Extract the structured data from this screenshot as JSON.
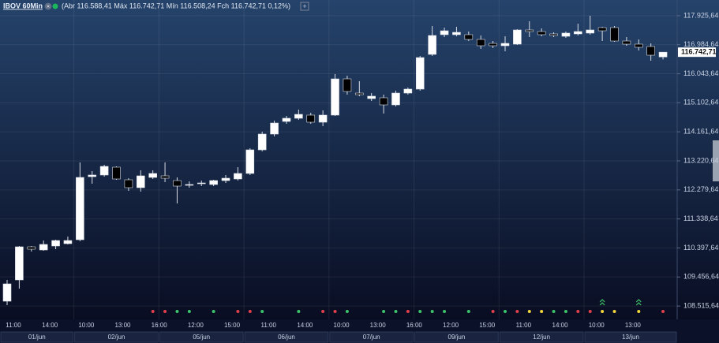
{
  "chart_data": {
    "type": "candlestick",
    "title": "IBOV 60Min",
    "subtitle": "(Abr 116.588,41 Máx 116.742,71 Mín 116.508,24 Fch 116.742,71 0,12%)",
    "categories": [
      "11:00",
      null,
      null,
      "14:00",
      null,
      null,
      "10:00",
      null,
      null,
      "13:00",
      null,
      null,
      "16:00",
      null,
      null,
      "12:00",
      null,
      null,
      "15:00",
      null,
      null,
      "11:00",
      null,
      null,
      "14:00",
      null,
      null,
      "10:00",
      null,
      null,
      "13:00",
      null,
      null,
      "16:00",
      null,
      null,
      "12:00",
      null,
      null,
      "15:00",
      null,
      null,
      "11:00",
      null,
      null,
      "14:00",
      null,
      null,
      "10:00",
      null,
      null,
      "13:00",
      null,
      null,
      null
    ],
    "dates": [
      "01/jun",
      "01/jun",
      "01/jun",
      "01/jun",
      "01/jun",
      "01/jun",
      "02/jun",
      "02/jun",
      "02/jun",
      "02/jun",
      "02/jun",
      "02/jun",
      "02/jun",
      "05/jun",
      "05/jun",
      "05/jun",
      "05/jun",
      "05/jun",
      "05/jun",
      "05/jun",
      "06/jun",
      "06/jun",
      "06/jun",
      "06/jun",
      "06/jun",
      "06/jun",
      "06/jun",
      "07/jun",
      "07/jun",
      "07/jun",
      "07/jun",
      "07/jun",
      "07/jun",
      "07/jun",
      "09/jun",
      "09/jun",
      "09/jun",
      "09/jun",
      "09/jun",
      "09/jun",
      "09/jun",
      "12/jun",
      "12/jun",
      "12/jun",
      "12/jun",
      "12/jun",
      "12/jun",
      "12/jun",
      "13/jun",
      "13/jun",
      "13/jun",
      "13/jun",
      "13/jun",
      "13/jun",
      "13/jun"
    ],
    "open": [
      108672,
      109362,
      110435,
      110333,
      110461,
      110537,
      110665,
      112709,
      112761,
      113016,
      112607,
      112352,
      112684,
      112735,
      112582,
      112428,
      112479,
      112454,
      112582,
      112633,
      112812,
      113578,
      114089,
      114498,
      114601,
      114703,
      114473,
      114703,
      115878,
      115418,
      115239,
      115265,
      115035,
      115418,
      115546,
      116671,
      117310,
      117310,
      117310,
      117156,
      117028,
      116952,
      117003,
      117463,
      117412,
      117335,
      117258,
      117335,
      117361,
      117540,
      117540,
      117105,
      117003,
      116926,
      116588.41
    ],
    "high": [
      109362,
      110461,
      110461,
      110639,
      110665,
      110767,
      113169,
      112888,
      113093,
      113042,
      112658,
      112914,
      112914,
      113169,
      112684,
      112556,
      112582,
      112607,
      112761,
      113016,
      113629,
      114166,
      114524,
      114677,
      114882,
      114779,
      114856,
      116032,
      115981,
      115802,
      115418,
      115367,
      115495,
      115597,
      116620,
      117591,
      117540,
      117565,
      117412,
      117284,
      117105,
      117258,
      117488,
      117744,
      117514,
      117386,
      117412,
      117667,
      117923,
      117565,
      117591,
      117233,
      117156,
      117028,
      116742.71
    ],
    "low": [
      108544,
      109081,
      110282,
      110307,
      110358,
      110512,
      110614,
      112479,
      112709,
      112607,
      112249,
      112224,
      112633,
      112531,
      111841,
      112352,
      112403,
      112403,
      112505,
      112582,
      112761,
      113527,
      114013,
      114422,
      114549,
      114422,
      114345,
      114677,
      115367,
      115316,
      115163,
      114754,
      114984,
      115367,
      115495,
      116620,
      117233,
      117258,
      117105,
      116850,
      116875,
      116773,
      116977,
      117233,
      117258,
      117233,
      117207,
      117284,
      117310,
      117105,
      117080,
      116952,
      116798,
      116466,
      116508.24
    ],
    "close": [
      109234,
      110435,
      110358,
      110512,
      110639,
      110639,
      112684,
      112761,
      113042,
      112633,
      112352,
      112735,
      112812,
      112658,
      112403,
      112454,
      112505,
      112582,
      112658,
      112812,
      113578,
      114089,
      114447,
      114601,
      114728,
      114473,
      114703,
      115878,
      115470,
      115367,
      115316,
      115035,
      115418,
      115546,
      116568,
      117284,
      117437,
      117386,
      117156,
      116952,
      116952,
      117028,
      117463,
      117412,
      117310,
      117284,
      117361,
      117412,
      117463,
      117437,
      117105,
      117003,
      116901,
      116645,
      116742.71
    ],
    "up_color": "#ffffff",
    "down_color": "#000000",
    "signals": [
      null,
      null,
      null,
      null,
      null,
      null,
      null,
      null,
      null,
      null,
      null,
      null,
      "red",
      "red",
      "green",
      "green",
      null,
      "green",
      null,
      "red",
      "red",
      "green",
      null,
      null,
      "green",
      null,
      "red",
      "red",
      "green",
      null,
      null,
      "green",
      "green",
      "red",
      "green",
      "green",
      "green",
      null,
      "green",
      null,
      "red",
      "green",
      "red",
      "yellow",
      "yellow",
      "green",
      "green",
      "red",
      "red",
      "yellow-up",
      "yellow",
      null,
      "yellow-up",
      null,
      "red"
    ],
    "last_price": {
      "value": 116742.71,
      "label": "116.742,71"
    },
    "ylim": [
      108084,
      118434
    ],
    "yticks": [
      {
        "value": 108515.64,
        "label": "108.515,64"
      },
      {
        "value": 109456.64,
        "label": "109.456,64"
      },
      {
        "value": 110397.64,
        "label": "110.397,64"
      },
      {
        "value": 111338.64,
        "label": "111.338,64"
      },
      {
        "value": 112279.64,
        "label": "112.279,64"
      },
      {
        "value": 113220.64,
        "label": "113.220,64"
      },
      {
        "value": 114161.64,
        "label": "114.161,64"
      },
      {
        "value": 115102.64,
        "label": "115.102,64"
      },
      {
        "value": 116043.64,
        "label": "116.043,64"
      },
      {
        "value": 116984.64,
        "label": "116.984,64"
      },
      {
        "value": 117925.64,
        "label": "117.925,64"
      }
    ],
    "grid": true
  }
}
